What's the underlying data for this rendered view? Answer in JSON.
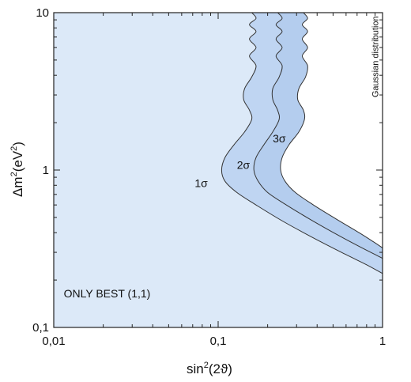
{
  "chart_data": {
    "type": "area",
    "title": "",
    "xlabel_base": "sin",
    "xlabel_sup": "2",
    "xlabel_rest": "(2ϑ)",
    "ylabel_base": "Δm",
    "ylabel_sup": "2",
    "ylabel_unit_open": "(eV",
    "ylabel_unit_sup": "2",
    "ylabel_unit_close": ")",
    "x_scale": "log",
    "y_scale": "log",
    "xlim": [
      0.01,
      1
    ],
    "ylim": [
      0.1,
      10
    ],
    "x_ticks": [
      {
        "value": 0.01,
        "label": "0,01"
      },
      {
        "value": 0.1,
        "label": "0,1"
      },
      {
        "value": 1,
        "label": "1"
      }
    ],
    "y_ticks": [
      {
        "value": 0.1,
        "label": "0,1"
      },
      {
        "value": 1,
        "label": "1"
      },
      {
        "value": 10,
        "label": "10"
      }
    ],
    "grid": false,
    "colors": {
      "region_1sigma": "#dce9f8",
      "region_2sigma": "#bfd5f2",
      "region_3sigma": "#b4cdee",
      "boundary": "#333333",
      "frame": "#222222"
    },
    "series": [
      {
        "name": "1σ",
        "label": "1σ",
        "label_at": {
          "x": 0.072,
          "y": 0.78
        },
        "boundary": [
          {
            "x": 0.16,
            "y": 10
          },
          {
            "x": 0.17,
            "y": 9.2
          },
          {
            "x": 0.155,
            "y": 8.4
          },
          {
            "x": 0.17,
            "y": 7.6
          },
          {
            "x": 0.155,
            "y": 6.8
          },
          {
            "x": 0.17,
            "y": 6.0
          },
          {
            "x": 0.155,
            "y": 5.3
          },
          {
            "x": 0.17,
            "y": 4.6
          },
          {
            "x": 0.16,
            "y": 3.9
          },
          {
            "x": 0.145,
            "y": 3.3
          },
          {
            "x": 0.143,
            "y": 2.8
          },
          {
            "x": 0.155,
            "y": 2.4
          },
          {
            "x": 0.16,
            "y": 2.1
          },
          {
            "x": 0.145,
            "y": 1.75
          },
          {
            "x": 0.125,
            "y": 1.45
          },
          {
            "x": 0.11,
            "y": 1.2
          },
          {
            "x": 0.105,
            "y": 1.0
          },
          {
            "x": 0.11,
            "y": 0.85
          },
          {
            "x": 0.13,
            "y": 0.72
          },
          {
            "x": 0.17,
            "y": 0.6
          },
          {
            "x": 0.25,
            "y": 0.47
          },
          {
            "x": 0.4,
            "y": 0.36
          },
          {
            "x": 0.6,
            "y": 0.29
          },
          {
            "x": 0.8,
            "y": 0.25
          },
          {
            "x": 1.0,
            "y": 0.22
          }
        ]
      },
      {
        "name": "2σ",
        "label": "2σ",
        "label_at": {
          "x": 0.13,
          "y": 1.02
        },
        "boundary": [
          {
            "x": 0.23,
            "y": 10
          },
          {
            "x": 0.245,
            "y": 9.2
          },
          {
            "x": 0.225,
            "y": 8.4
          },
          {
            "x": 0.245,
            "y": 7.6
          },
          {
            "x": 0.225,
            "y": 6.8
          },
          {
            "x": 0.245,
            "y": 6.0
          },
          {
            "x": 0.225,
            "y": 5.3
          },
          {
            "x": 0.245,
            "y": 4.6
          },
          {
            "x": 0.235,
            "y": 3.9
          },
          {
            "x": 0.215,
            "y": 3.3
          },
          {
            "x": 0.215,
            "y": 2.8
          },
          {
            "x": 0.23,
            "y": 2.4
          },
          {
            "x": 0.235,
            "y": 2.1
          },
          {
            "x": 0.215,
            "y": 1.75
          },
          {
            "x": 0.19,
            "y": 1.45
          },
          {
            "x": 0.17,
            "y": 1.2
          },
          {
            "x": 0.165,
            "y": 1.0
          },
          {
            "x": 0.175,
            "y": 0.85
          },
          {
            "x": 0.2,
            "y": 0.72
          },
          {
            "x": 0.26,
            "y": 0.6
          },
          {
            "x": 0.37,
            "y": 0.48
          },
          {
            "x": 0.55,
            "y": 0.38
          },
          {
            "x": 0.75,
            "y": 0.32
          },
          {
            "x": 1.0,
            "y": 0.275
          }
        ]
      },
      {
        "name": "3σ",
        "label": "3σ",
        "label_at": {
          "x": 0.215,
          "y": 1.5
        },
        "boundary": [
          {
            "x": 0.33,
            "y": 10
          },
          {
            "x": 0.35,
            "y": 9.2
          },
          {
            "x": 0.325,
            "y": 8.4
          },
          {
            "x": 0.35,
            "y": 7.6
          },
          {
            "x": 0.325,
            "y": 6.8
          },
          {
            "x": 0.35,
            "y": 6.0
          },
          {
            "x": 0.325,
            "y": 5.3
          },
          {
            "x": 0.35,
            "y": 4.6
          },
          {
            "x": 0.34,
            "y": 3.9
          },
          {
            "x": 0.31,
            "y": 3.3
          },
          {
            "x": 0.305,
            "y": 2.8
          },
          {
            "x": 0.33,
            "y": 2.4
          },
          {
            "x": 0.335,
            "y": 2.1
          },
          {
            "x": 0.31,
            "y": 1.75
          },
          {
            "x": 0.27,
            "y": 1.45
          },
          {
            "x": 0.245,
            "y": 1.2
          },
          {
            "x": 0.24,
            "y": 1.0
          },
          {
            "x": 0.255,
            "y": 0.85
          },
          {
            "x": 0.295,
            "y": 0.72
          },
          {
            "x": 0.38,
            "y": 0.6
          },
          {
            "x": 0.52,
            "y": 0.49
          },
          {
            "x": 0.72,
            "y": 0.4
          },
          {
            "x": 0.88,
            "y": 0.35
          },
          {
            "x": 1.0,
            "y": 0.32
          }
        ]
      }
    ],
    "annotations": [
      {
        "text": "ONLY BEST (1,1)",
        "at": {
          "x": 0.0115,
          "y": 0.155
        },
        "kind": "corner-note"
      },
      {
        "text": "Gaussian distribution",
        "at": {
          "x": 0.94,
          "y": 9.5
        },
        "kind": "vertical-note"
      }
    ]
  }
}
